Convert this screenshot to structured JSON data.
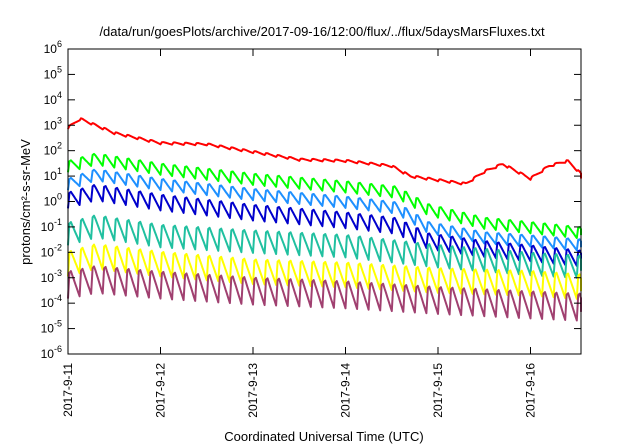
{
  "chart_data": {
    "type": "line",
    "title": "/data/run/goesPlots/archive/2017-09-16/12:00/flux/../flux/5daysMarsFluxes.txt",
    "xlabel": "Coordinated Universal Time (UTC)",
    "ylabel": "protons/cm²-s-sr-MeV",
    "yscale": "log",
    "ylim": [
      1e-06,
      1000000.0
    ],
    "xlim": [
      "2017-09-11 00:00",
      "2017-09-16 14:00"
    ],
    "grid": false,
    "y_ticks": [
      {
        "base": "10",
        "exp": "-6",
        "value": 1e-06
      },
      {
        "base": "10",
        "exp": "-5",
        "value": 1e-05
      },
      {
        "base": "10",
        "exp": "-4",
        "value": 0.0001
      },
      {
        "base": "10",
        "exp": "-3",
        "value": 0.001
      },
      {
        "base": "10",
        "exp": "-2",
        "value": 0.01
      },
      {
        "base": "10",
        "exp": "-1",
        "value": 0.1
      },
      {
        "base": "10",
        "exp": "0",
        "value": 1
      },
      {
        "base": "10",
        "exp": "1",
        "value": 10
      },
      {
        "base": "10",
        "exp": "2",
        "value": 100
      },
      {
        "base": "10",
        "exp": "3",
        "value": 1000
      },
      {
        "base": "10",
        "exp": "4",
        "value": 10000
      },
      {
        "base": "10",
        "exp": "5",
        "value": 100000
      },
      {
        "base": "10",
        "exp": "6",
        "value": 1000000
      }
    ],
    "x_ticks": [
      "2017-9-11",
      "2017-9-12",
      "2017-9-13",
      "2017-9-14",
      "2017-9-15",
      "2017-9-16"
    ],
    "series": [
      {
        "color": "#ff0000",
        "x_days": [
          0,
          0.13,
          0.5,
          1.0,
          1.5,
          2.0,
          2.5,
          3.0,
          3.5,
          3.7,
          4.0,
          4.3,
          4.5,
          4.7,
          5.0,
          5.2,
          5.4,
          5.6
        ],
        "values": [
          800,
          1800,
          500,
          200,
          180,
          90,
          45,
          40,
          25,
          10,
          7,
          5,
          15,
          30,
          8,
          25,
          40,
          8
        ],
        "ripple": 0.1
      },
      {
        "color": "#00ff00",
        "x_days": [
          0,
          0.3,
          1.0,
          2.0,
          3.0,
          3.55,
          3.9,
          4.5,
          5.0,
          5.6
        ],
        "values": [
          25,
          50,
          20,
          8,
          4,
          2.5,
          0.5,
          0.15,
          0.1,
          0.06
        ],
        "ripple": 0.5
      },
      {
        "color": "#1e90ff",
        "x_days": [
          0,
          0.3,
          1.0,
          2.0,
          3.0,
          3.55,
          3.9,
          4.5,
          5.0,
          5.6
        ],
        "values": [
          5,
          12,
          5,
          2,
          1,
          0.6,
          0.1,
          0.04,
          0.03,
          0.02
        ],
        "ripple": 0.5
      },
      {
        "color": "#0000cc",
        "x_days": [
          0,
          0.3,
          1.0,
          2.0,
          3.0,
          3.55,
          3.9,
          4.5,
          5.0,
          5.6
        ],
        "values": [
          1.2,
          2.5,
          1,
          0.4,
          0.2,
          0.12,
          0.03,
          0.015,
          0.01,
          0.006
        ],
        "ripple": 0.7
      },
      {
        "color": "#20c0a0",
        "x_days": [
          0,
          0.3,
          1.0,
          2.0,
          3.0,
          4.0,
          5.0,
          5.6
        ],
        "values": [
          0.06,
          0.12,
          0.05,
          0.03,
          0.02,
          0.008,
          0.004,
          0.003
        ],
        "ripple": 1.0
      },
      {
        "color": "#ffff00",
        "x_days": [
          0,
          0.3,
          1.0,
          2.0,
          3.0,
          4.0,
          5.0,
          5.6
        ],
        "values": [
          0.004,
          0.008,
          0.004,
          0.002,
          0.0015,
          0.0009,
          0.0007,
          0.0005
        ],
        "ripple": 1.1
      },
      {
        "color": "#a04070",
        "x_days": [
          0,
          0.3,
          1.0,
          2.0,
          3.0,
          4.0,
          5.0,
          5.6
        ],
        "values": [
          0.0006,
          0.001,
          0.0006,
          0.00035,
          0.00025,
          0.00015,
          0.0001,
          8e-05
        ],
        "ripple": 1.2
      }
    ]
  }
}
